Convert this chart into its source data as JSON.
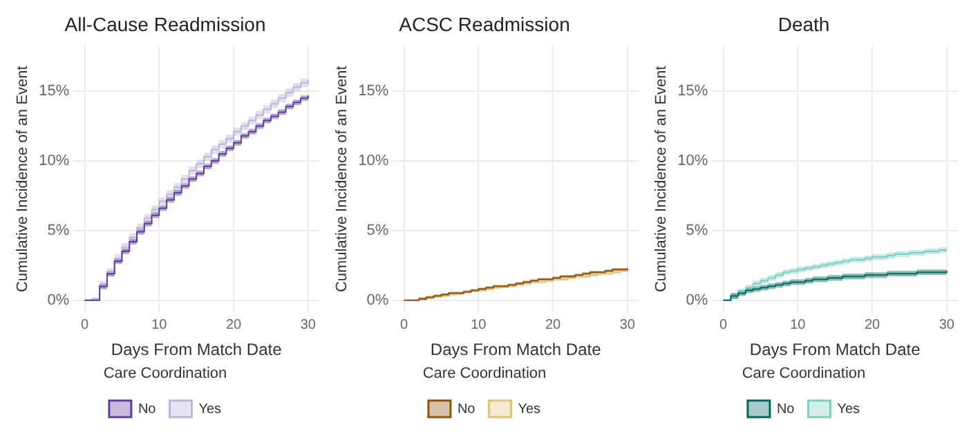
{
  "chart_data": [
    {
      "type": "step",
      "title": "All-Cause Readmission",
      "xlabel": "Days From Match Date",
      "ylabel": "Cumulative Incidence of an Event",
      "legend_title": "Care Coordination",
      "legend": "bottom",
      "grid": true,
      "x": [
        0,
        1,
        2,
        3,
        4,
        5,
        6,
        7,
        8,
        9,
        10,
        11,
        12,
        13,
        14,
        15,
        16,
        17,
        18,
        19,
        20,
        21,
        22,
        23,
        24,
        25,
        26,
        27,
        28,
        29,
        30
      ],
      "xlim": [
        -1.5,
        31.5
      ],
      "xticks": [
        0,
        10,
        20,
        30
      ],
      "ylim": [
        -0.9,
        18.3
      ],
      "yticks": [
        {
          "value": 0,
          "label": "0%"
        },
        {
          "value": 5,
          "label": "5%"
        },
        {
          "value": 10,
          "label": "10%"
        },
        {
          "value": 15,
          "label": "15%"
        }
      ],
      "series": [
        {
          "name": "No",
          "color": "#5e3c99",
          "values": [
            0,
            0,
            1.0,
            1.9,
            2.8,
            3.5,
            4.2,
            4.9,
            5.5,
            6.1,
            6.6,
            7.2,
            7.7,
            8.2,
            8.7,
            9.1,
            9.6,
            10.0,
            10.5,
            10.9,
            11.3,
            11.8,
            12.1,
            12.5,
            12.9,
            13.2,
            13.5,
            13.9,
            14.2,
            14.5,
            14.7
          ],
          "lower": [
            0,
            0,
            0.8,
            1.7,
            2.6,
            3.3,
            4.0,
            4.7,
            5.3,
            5.9,
            6.4,
            7.0,
            7.5,
            8.0,
            8.5,
            8.9,
            9.4,
            9.8,
            10.3,
            10.7,
            11.1,
            11.6,
            11.9,
            12.3,
            12.7,
            13.0,
            13.3,
            13.7,
            14.0,
            14.3,
            14.5
          ],
          "upper": [
            0,
            0,
            1.2,
            2.1,
            3.0,
            3.7,
            4.4,
            5.1,
            5.7,
            6.3,
            6.8,
            7.4,
            7.9,
            8.4,
            8.9,
            9.3,
            9.8,
            10.2,
            10.7,
            11.1,
            11.5,
            12.0,
            12.3,
            12.7,
            13.1,
            13.4,
            13.7,
            14.1,
            14.4,
            14.7,
            14.9
          ]
        },
        {
          "name": "Yes",
          "color": "#bcb5d8",
          "values": [
            0,
            0.1,
            1.1,
            2.0,
            3.0,
            3.8,
            4.5,
            5.2,
            5.9,
            6.5,
            7.1,
            7.6,
            8.1,
            8.7,
            9.3,
            9.8,
            10.3,
            10.8,
            11.2,
            11.6,
            12.1,
            12.5,
            12.9,
            13.3,
            13.7,
            14.1,
            14.5,
            14.9,
            15.3,
            15.6,
            15.8
          ],
          "lower": [
            0,
            0,
            0.8,
            1.7,
            2.7,
            3.5,
            4.2,
            4.9,
            5.6,
            6.2,
            6.8,
            7.3,
            7.8,
            8.4,
            9.0,
            9.5,
            10.0,
            10.5,
            10.9,
            11.3,
            11.8,
            12.2,
            12.6,
            13.0,
            13.4,
            13.8,
            14.2,
            14.6,
            15.0,
            15.3,
            15.4
          ],
          "upper": [
            0,
            0.2,
            1.4,
            2.3,
            3.3,
            4.1,
            4.8,
            5.5,
            6.2,
            6.8,
            7.4,
            7.9,
            8.4,
            9.0,
            9.6,
            10.1,
            10.6,
            11.1,
            11.5,
            11.9,
            12.4,
            12.8,
            13.2,
            13.6,
            14.0,
            14.4,
            14.8,
            15.2,
            15.6,
            15.9,
            16.2
          ]
        }
      ]
    },
    {
      "type": "step",
      "title": "ACSC Readmission",
      "xlabel": "Days From Match Date",
      "ylabel": "Cumulative Incidence of an Event",
      "legend_title": "Care Coordination",
      "legend": "bottom",
      "grid": true,
      "x": [
        0,
        1,
        2,
        3,
        4,
        5,
        6,
        7,
        8,
        9,
        10,
        11,
        12,
        13,
        14,
        15,
        16,
        17,
        18,
        19,
        20,
        21,
        22,
        23,
        24,
        25,
        26,
        27,
        28,
        29,
        30
      ],
      "xlim": [
        -1.5,
        31.5
      ],
      "xticks": [
        0,
        10,
        20,
        30
      ],
      "ylim": [
        -0.9,
        18.3
      ],
      "yticks": [
        {
          "value": 0,
          "label": "0%"
        },
        {
          "value": 5,
          "label": "5%"
        },
        {
          "value": 10,
          "label": "10%"
        },
        {
          "value": 15,
          "label": "15%"
        }
      ],
      "series": [
        {
          "name": "No",
          "color": "#8c510a",
          "values": [
            0,
            0,
            0.1,
            0.2,
            0.3,
            0.4,
            0.5,
            0.5,
            0.6,
            0.7,
            0.8,
            0.9,
            1.0,
            1.0,
            1.1,
            1.2,
            1.3,
            1.4,
            1.5,
            1.5,
            1.6,
            1.7,
            1.7,
            1.8,
            1.9,
            2.0,
            2.0,
            2.1,
            2.2,
            2.2,
            2.3
          ],
          "lower": [
            0,
            0,
            0,
            0.1,
            0.2,
            0.3,
            0.4,
            0.4,
            0.5,
            0.6,
            0.7,
            0.8,
            0.9,
            0.9,
            1.0,
            1.1,
            1.2,
            1.3,
            1.4,
            1.4,
            1.5,
            1.6,
            1.6,
            1.7,
            1.8,
            1.9,
            1.9,
            2.0,
            2.1,
            2.1,
            2.2
          ],
          "upper": [
            0,
            0,
            0.2,
            0.3,
            0.4,
            0.5,
            0.6,
            0.6,
            0.7,
            0.8,
            0.9,
            1.0,
            1.1,
            1.1,
            1.2,
            1.3,
            1.4,
            1.5,
            1.6,
            1.6,
            1.7,
            1.8,
            1.8,
            1.9,
            2.0,
            2.1,
            2.1,
            2.2,
            2.3,
            2.3,
            2.4
          ]
        },
        {
          "name": "Yes",
          "color": "#dfc27d",
          "values": [
            0,
            0,
            0.1,
            0.2,
            0.3,
            0.3,
            0.4,
            0.5,
            0.6,
            0.7,
            0.7,
            0.8,
            0.9,
            1.0,
            1.0,
            1.1,
            1.2,
            1.3,
            1.3,
            1.4,
            1.5,
            1.5,
            1.6,
            1.7,
            1.7,
            1.8,
            1.9,
            1.9,
            2.0,
            2.1,
            2.2
          ],
          "lower": [
            0,
            0,
            0,
            0.1,
            0.2,
            0.2,
            0.3,
            0.4,
            0.5,
            0.6,
            0.6,
            0.7,
            0.8,
            0.9,
            0.9,
            1.0,
            1.1,
            1.2,
            1.2,
            1.3,
            1.4,
            1.4,
            1.5,
            1.6,
            1.6,
            1.7,
            1.8,
            1.8,
            1.9,
            2.0,
            2.1
          ],
          "upper": [
            0,
            0,
            0.2,
            0.3,
            0.4,
            0.4,
            0.5,
            0.6,
            0.7,
            0.8,
            0.8,
            0.9,
            1.0,
            1.1,
            1.1,
            1.2,
            1.3,
            1.4,
            1.4,
            1.5,
            1.6,
            1.6,
            1.7,
            1.8,
            1.8,
            1.9,
            2.0,
            2.0,
            2.1,
            2.2,
            2.3
          ]
        }
      ]
    },
    {
      "type": "step",
      "title": "Death",
      "xlabel": "Days From Match Date",
      "ylabel": "Cumulative Incidence of an Event",
      "legend_title": "Care Coordination",
      "legend": "bottom",
      "grid": true,
      "x": [
        0,
        1,
        2,
        3,
        4,
        5,
        6,
        7,
        8,
        9,
        10,
        11,
        12,
        13,
        14,
        15,
        16,
        17,
        18,
        19,
        20,
        21,
        22,
        23,
        24,
        25,
        26,
        27,
        28,
        29,
        30
      ],
      "xlim": [
        -1.5,
        31.5
      ],
      "xticks": [
        0,
        10,
        20,
        30
      ],
      "ylim": [
        -0.9,
        18.3
      ],
      "yticks": [
        {
          "value": 0,
          "label": "0%"
        },
        {
          "value": 5,
          "label": "5%"
        },
        {
          "value": 10,
          "label": "10%"
        },
        {
          "value": 15,
          "label": "15%"
        }
      ],
      "series": [
        {
          "name": "No",
          "color": "#01665e",
          "values": [
            0,
            0.3,
            0.5,
            0.7,
            0.8,
            0.9,
            1.0,
            1.1,
            1.2,
            1.3,
            1.3,
            1.4,
            1.5,
            1.5,
            1.6,
            1.6,
            1.7,
            1.7,
            1.7,
            1.8,
            1.8,
            1.8,
            1.9,
            1.9,
            1.9,
            1.9,
            2.0,
            2.0,
            2.0,
            2.0,
            2.1
          ],
          "lower": [
            0,
            0.1,
            0.3,
            0.5,
            0.6,
            0.7,
            0.8,
            0.9,
            1.0,
            1.1,
            1.1,
            1.2,
            1.3,
            1.3,
            1.4,
            1.4,
            1.5,
            1.5,
            1.5,
            1.6,
            1.6,
            1.6,
            1.7,
            1.7,
            1.7,
            1.7,
            1.8,
            1.8,
            1.8,
            1.8,
            1.9
          ],
          "upper": [
            0,
            0.5,
            0.7,
            0.9,
            1.0,
            1.1,
            1.2,
            1.3,
            1.4,
            1.5,
            1.5,
            1.6,
            1.7,
            1.7,
            1.8,
            1.8,
            1.9,
            1.9,
            1.9,
            2.0,
            2.0,
            2.0,
            2.1,
            2.1,
            2.1,
            2.1,
            2.2,
            2.2,
            2.2,
            2.2,
            2.3
          ]
        },
        {
          "name": "Yes",
          "color": "#80cdc1",
          "values": [
            0,
            0.3,
            0.6,
            0.9,
            1.2,
            1.4,
            1.6,
            1.8,
            2.0,
            2.1,
            2.2,
            2.3,
            2.4,
            2.5,
            2.6,
            2.7,
            2.8,
            2.9,
            2.9,
            3.0,
            3.1,
            3.1,
            3.2,
            3.3,
            3.3,
            3.4,
            3.4,
            3.5,
            3.5,
            3.6,
            3.6
          ],
          "lower": [
            0,
            0.1,
            0.4,
            0.7,
            1.0,
            1.2,
            1.4,
            1.6,
            1.8,
            1.9,
            2.0,
            2.1,
            2.2,
            2.3,
            2.4,
            2.5,
            2.6,
            2.7,
            2.7,
            2.8,
            2.9,
            2.9,
            3.0,
            3.1,
            3.1,
            3.2,
            3.2,
            3.3,
            3.3,
            3.4,
            3.4
          ],
          "upper": [
            0,
            0.5,
            0.8,
            1.1,
            1.4,
            1.6,
            1.8,
            2.0,
            2.2,
            2.3,
            2.4,
            2.5,
            2.6,
            2.7,
            2.8,
            2.9,
            3.0,
            3.1,
            3.1,
            3.2,
            3.3,
            3.3,
            3.4,
            3.5,
            3.5,
            3.6,
            3.6,
            3.7,
            3.7,
            3.8,
            3.8
          ]
        }
      ]
    }
  ]
}
